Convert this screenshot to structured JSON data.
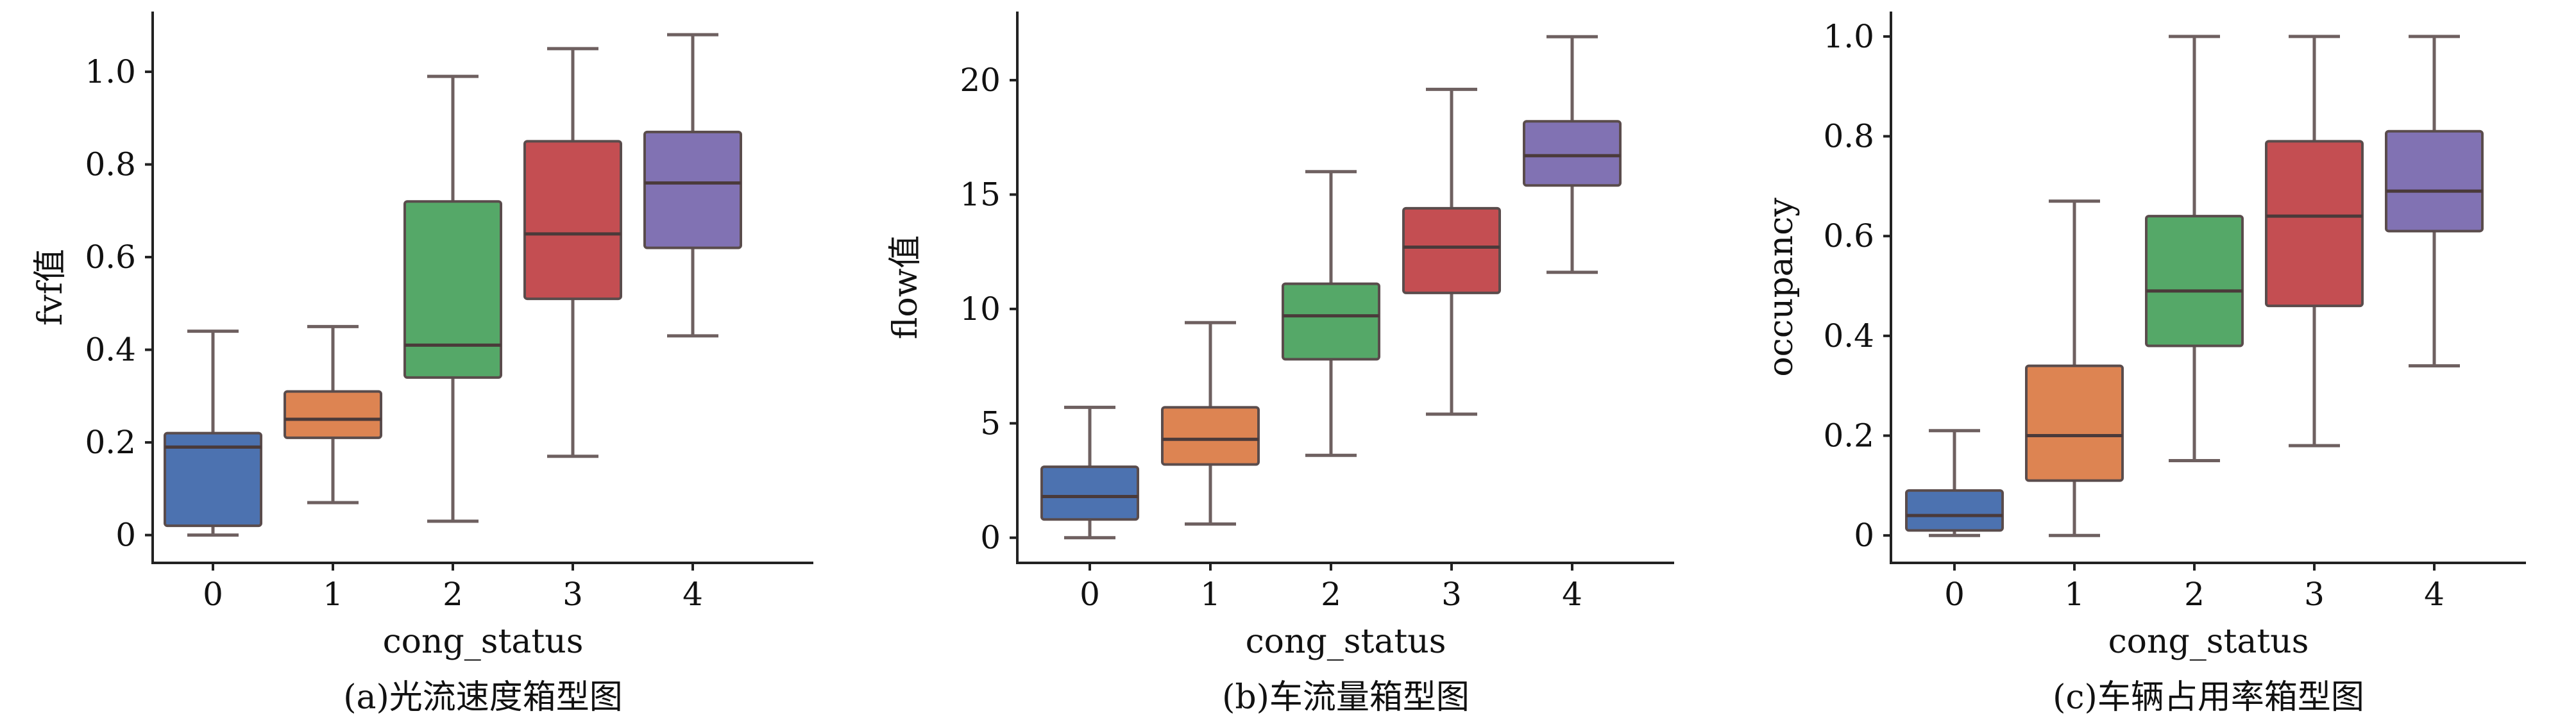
{
  "chart_data": [
    {
      "type": "box",
      "caption": "(a)光流速度箱型图",
      "xlabel": "cong_status",
      "ylabel": "fvf值",
      "categories": [
        "0",
        "1",
        "2",
        "3",
        "4"
      ],
      "ylim": [
        -0.06,
        1.13
      ],
      "yticks": [
        {
          "value": 0,
          "label": "0"
        },
        {
          "value": 0.2,
          "label": "0.2"
        },
        {
          "value": 0.4,
          "label": "0.4"
        },
        {
          "value": 0.6,
          "label": "0.6"
        },
        {
          "value": 0.8,
          "label": "0.8"
        },
        {
          "value": 1.0,
          "label": "1.0"
        }
      ],
      "boxes": [
        {
          "whisker_low": 0.0,
          "q1": 0.02,
          "median": 0.19,
          "q3": 0.22,
          "whisker_high": 0.44
        },
        {
          "whisker_low": 0.07,
          "q1": 0.21,
          "median": 0.25,
          "q3": 0.31,
          "whisker_high": 0.45
        },
        {
          "whisker_low": 0.03,
          "q1": 0.34,
          "median": 0.41,
          "q3": 0.72,
          "whisker_high": 0.99
        },
        {
          "whisker_low": 0.17,
          "q1": 0.51,
          "median": 0.65,
          "q3": 0.85,
          "whisker_high": 1.05
        },
        {
          "whisker_low": 0.43,
          "q1": 0.62,
          "median": 0.76,
          "q3": 0.87,
          "whisker_high": 1.08
        }
      ],
      "colors": [
        "#4c72b0",
        "#dd8452",
        "#55a868",
        "#c44e52",
        "#8172b3"
      ]
    },
    {
      "type": "box",
      "caption": "(b)车流量箱型图",
      "xlabel": "cong_status",
      "ylabel": "flow值",
      "categories": [
        "0",
        "1",
        "2",
        "3",
        "4"
      ],
      "ylim": [
        -1.1,
        23
      ],
      "yticks": [
        {
          "value": 0,
          "label": "0"
        },
        {
          "value": 5,
          "label": "5"
        },
        {
          "value": 10,
          "label": "10"
        },
        {
          "value": 15,
          "label": "15"
        },
        {
          "value": 20,
          "label": "20"
        }
      ],
      "boxes": [
        {
          "whisker_low": 0.0,
          "q1": 0.8,
          "median": 1.8,
          "q3": 3.1,
          "whisker_high": 5.7
        },
        {
          "whisker_low": 0.6,
          "q1": 3.2,
          "median": 4.3,
          "q3": 5.7,
          "whisker_high": 9.4
        },
        {
          "whisker_low": 3.6,
          "q1": 7.8,
          "median": 9.7,
          "q3": 11.1,
          "whisker_high": 16.0
        },
        {
          "whisker_low": 5.4,
          "q1": 10.7,
          "median": 12.7,
          "q3": 14.4,
          "whisker_high": 19.6
        },
        {
          "whisker_low": 11.6,
          "q1": 15.4,
          "median": 16.7,
          "q3": 18.2,
          "whisker_high": 21.9
        }
      ],
      "colors": [
        "#4c72b0",
        "#dd8452",
        "#55a868",
        "#c44e52",
        "#8172b3"
      ]
    },
    {
      "type": "box",
      "caption": "(c)车辆占用率箱型图",
      "xlabel": "cong_status",
      "ylabel": "occupancy",
      "categories": [
        "0",
        "1",
        "2",
        "3",
        "4"
      ],
      "ylim": [
        -0.055,
        1.05
      ],
      "yticks": [
        {
          "value": 0,
          "label": "0"
        },
        {
          "value": 0.2,
          "label": "0.2"
        },
        {
          "value": 0.4,
          "label": "0.4"
        },
        {
          "value": 0.6,
          "label": "0.6"
        },
        {
          "value": 0.8,
          "label": "0.8"
        },
        {
          "value": 1.0,
          "label": "1.0"
        }
      ],
      "boxes": [
        {
          "whisker_low": 0.0,
          "q1": 0.01,
          "median": 0.04,
          "q3": 0.09,
          "whisker_high": 0.21
        },
        {
          "whisker_low": 0.0,
          "q1": 0.11,
          "median": 0.2,
          "q3": 0.34,
          "whisker_high": 0.67
        },
        {
          "whisker_low": 0.15,
          "q1": 0.38,
          "median": 0.49,
          "q3": 0.64,
          "whisker_high": 1.0
        },
        {
          "whisker_low": 0.18,
          "q1": 0.46,
          "median": 0.64,
          "q3": 0.79,
          "whisker_high": 1.0
        },
        {
          "whisker_low": 0.34,
          "q1": 0.61,
          "median": 0.69,
          "q3": 0.81,
          "whisker_high": 1.0
        }
      ],
      "colors": [
        "#4c72b0",
        "#dd8452",
        "#55a868",
        "#c44e52",
        "#8172b3"
      ]
    }
  ]
}
